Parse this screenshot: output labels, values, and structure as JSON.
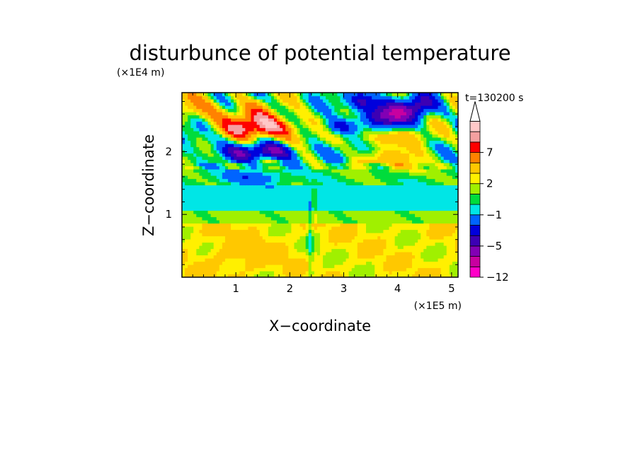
{
  "chart_data": {
    "type": "heatmap",
    "title": "disturbunce of potential temperature",
    "time_label": "t=130200 s",
    "xlabel": "X−coordinate",
    "ylabel": "Z−coordinate",
    "x_unit": "(×1E5 m)",
    "y_unit": "(×1E4 m)",
    "xlim": [
      0,
      5.12
    ],
    "ylim": [
      0,
      2.94
    ],
    "x_ticks": [
      1,
      2,
      3,
      4,
      5
    ],
    "y_ticks": [
      1,
      2
    ],
    "x_tick_labels": [
      "1",
      "2",
      "3",
      "4",
      "5"
    ],
    "y_tick_labels": [
      "1",
      "2"
    ],
    "grid": false,
    "colorbar": {
      "levels_bottom_to_top": [
        "<-11",
        "-11..-9",
        "-9..-7",
        "-7..-5",
        "-5..-3",
        "-3..-1",
        "-1..0",
        "0..1",
        "1..2",
        "2..3",
        "3..5",
        "5..7",
        "7..9",
        "9..11",
        ">11"
      ],
      "colors_bottom_to_top": [
        "#ff00c8",
        "#c800a0",
        "#8200b4",
        "#3c00b4",
        "#0000dc",
        "#0064ff",
        "#00e6e6",
        "#00dc3c",
        "#a0f000",
        "#fff000",
        "#ffc800",
        "#ff8200",
        "#ff0000",
        "#f5a0a0",
        "#ffc8c8"
      ],
      "labeled_values": [
        "7",
        "2",
        "−1",
        "−5",
        "−12"
      ],
      "extend": "max"
    },
    "z_bands_description_values": [
      {
        "z_range": [
          0,
          0.85
        ],
        "dominant_value_range": "2..5"
      },
      {
        "z_range": [
          0.85,
          1.05
        ],
        "dominant_value_range": "1..2"
      },
      {
        "z_range": [
          1.05,
          1.45
        ],
        "dominant_value_range": "-1..0"
      },
      {
        "z_range": [
          1.45,
          1.8
        ],
        "dominant_value_range": "0..1"
      },
      {
        "z_range": [
          1.8,
          2.94
        ],
        "dominant_value_range": "-9..9"
      }
    ],
    "extrema": [
      {
        "x": 1.5,
        "z": 2.35,
        "value_range": "7..9"
      },
      {
        "x": 1.5,
        "z": 2.0,
        "value_range": "-5..-3"
      },
      {
        "x": 3.85,
        "z": 2.6,
        "value_range": "-9..-7"
      },
      {
        "x": 3.35,
        "z": 2.8,
        "value_range": "-5..-3"
      }
    ]
  }
}
